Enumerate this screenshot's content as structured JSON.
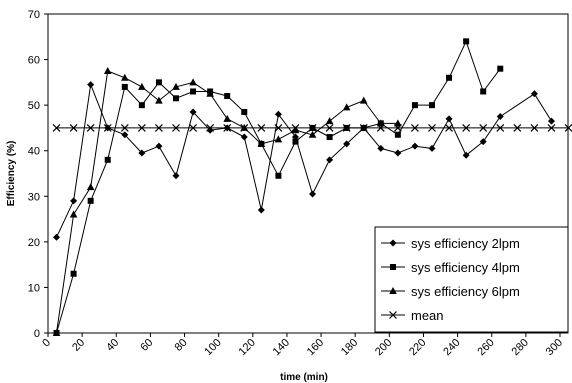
{
  "chart_data": {
    "type": "line",
    "title": "",
    "xlabel": "time (min)",
    "ylabel": "Efficiency (%)",
    "xlim": [
      0,
      300
    ],
    "ylim": [
      0,
      70
    ],
    "xticks": [
      0,
      20,
      40,
      60,
      80,
      100,
      120,
      140,
      160,
      180,
      200,
      220,
      240,
      260,
      280,
      300
    ],
    "yticks": [
      0,
      10,
      20,
      30,
      40,
      50,
      60,
      70
    ],
    "grid": false,
    "legend_position": "bottom-right",
    "series": [
      {
        "name": "sys efficiency 2lpm",
        "marker": "diamond",
        "color": "#000000",
        "x": [
          5,
          15,
          25,
          35,
          45,
          55,
          65,
          75,
          85,
          95,
          105,
          115,
          125,
          135,
          145,
          155,
          165,
          175,
          185,
          195,
          205,
          215,
          225,
          235,
          245,
          255,
          265,
          285,
          295
        ],
        "y": [
          21,
          29,
          54.5,
          45,
          43.5,
          39.5,
          41,
          34.5,
          48.5,
          44.5,
          45,
          43,
          27,
          48,
          43,
          30.5,
          38,
          41.5,
          45,
          40.5,
          39.5,
          41,
          40.5,
          47,
          39,
          42,
          47.5,
          52.5,
          46.5
        ]
      },
      {
        "name": "sys efficiency 4lpm",
        "marker": "square",
        "color": "#000000",
        "x": [
          5,
          15,
          25,
          35,
          45,
          55,
          65,
          75,
          85,
          95,
          105,
          115,
          125,
          135,
          145,
          155,
          165,
          175,
          185,
          195,
          205,
          215,
          225,
          235,
          245,
          255,
          265
        ],
        "y": [
          0,
          13,
          29,
          38,
          54,
          50,
          55,
          51.5,
          53,
          53,
          52,
          48.5,
          41.5,
          34.5,
          42,
          45,
          43,
          45,
          45,
          46,
          43.5,
          50,
          50,
          56,
          64,
          53,
          58
        ]
      },
      {
        "name": "sys efficiency 6lpm",
        "marker": "triangle",
        "color": "#000000",
        "x": [
          5,
          15,
          25,
          35,
          45,
          55,
          65,
          75,
          85,
          95,
          105,
          115,
          125,
          135,
          145,
          155,
          165,
          175,
          185,
          195,
          205
        ],
        "y": [
          0,
          26,
          32,
          57.5,
          56,
          54,
          51,
          54,
          55,
          52.5,
          47,
          45,
          41.5,
          42.5,
          44.5,
          43.5,
          46.5,
          49.5,
          51,
          46,
          46
        ]
      },
      {
        "name": "mean",
        "marker": "x",
        "color": "#000000",
        "x": [
          5,
          15,
          25,
          35,
          45,
          55,
          65,
          75,
          85,
          95,
          105,
          115,
          125,
          135,
          145,
          155,
          165,
          175,
          185,
          195,
          205,
          215,
          225,
          235,
          245,
          255,
          265,
          275,
          285,
          295,
          305
        ],
        "y": [
          45,
          45,
          45,
          45,
          45,
          45,
          45,
          45,
          45,
          45,
          45,
          45,
          45,
          45,
          45,
          45,
          45,
          45,
          45,
          45,
          45,
          45,
          45,
          45,
          45,
          45,
          45,
          45,
          45,
          45,
          45
        ]
      }
    ]
  }
}
